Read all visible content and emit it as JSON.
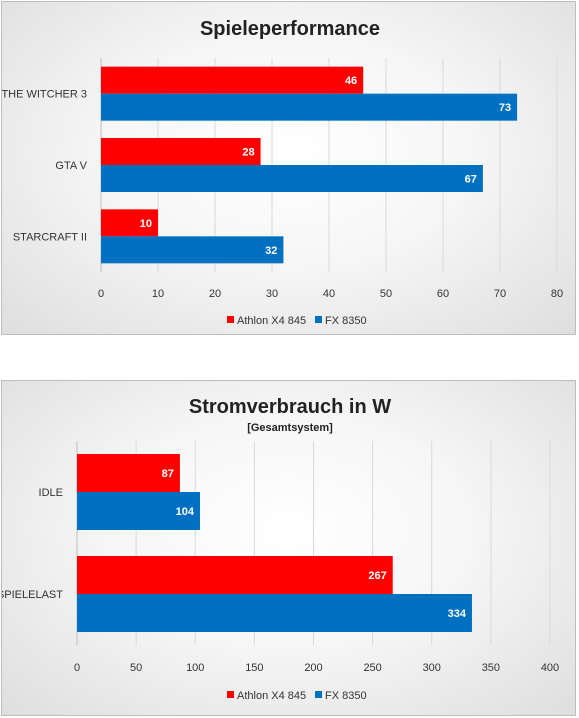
{
  "chart_data": [
    {
      "type": "bar",
      "orientation": "horizontal",
      "title": "Spieleperformance",
      "subtitle": "",
      "categories": [
        "THE WITCHER 3",
        "GTA V",
        "STARCRAFT II"
      ],
      "series": [
        {
          "name": "Athlon X4 845",
          "color": "#ff0000",
          "values": [
            46,
            28,
            10
          ]
        },
        {
          "name": "FX 8350",
          "color": "#0070c0",
          "values": [
            73,
            67,
            32
          ]
        }
      ],
      "xlim": [
        0,
        80
      ],
      "xticks": [
        0,
        10,
        20,
        30,
        40,
        50,
        60,
        70,
        80
      ],
      "grid": true,
      "legend_position": "bottom"
    },
    {
      "type": "bar",
      "orientation": "horizontal",
      "title": "Stromverbrauch in W",
      "subtitle": "[Gesamtsystem]",
      "categories": [
        "IDLE",
        "SPIELELAST"
      ],
      "series": [
        {
          "name": "Athlon X4 845",
          "color": "#ff0000",
          "values": [
            87,
            267
          ]
        },
        {
          "name": "FX 8350",
          "color": "#0070c0",
          "values": [
            104,
            334
          ]
        }
      ],
      "xlim": [
        0,
        400
      ],
      "xticks": [
        0,
        50,
        100,
        150,
        200,
        250,
        300,
        350,
        400
      ],
      "grid": true,
      "legend_position": "bottom"
    }
  ]
}
